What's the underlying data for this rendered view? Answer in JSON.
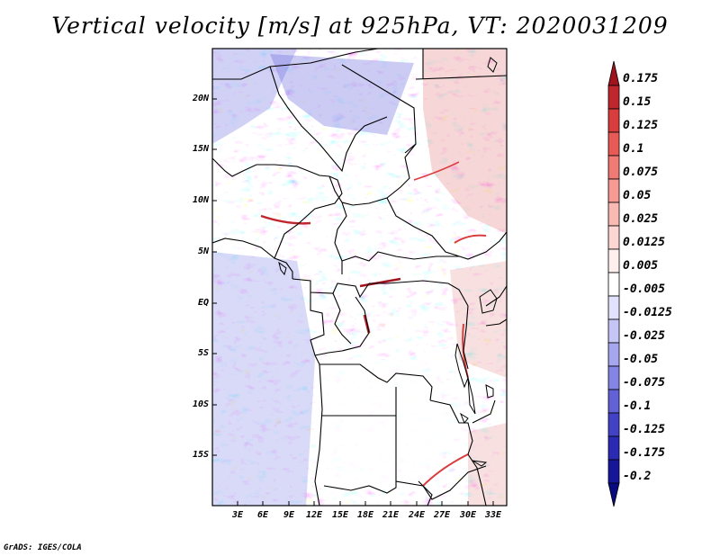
{
  "title": "Vertical velocity [m/s] at 925hPa, VT: 2020031209",
  "footer": "GrADS: IGES/COLA",
  "map": {
    "lon_range": [
      0,
      34
    ],
    "lat_range": [
      -20,
      25
    ],
    "lat_ticks": [
      "20N",
      "15N",
      "10N",
      "5N",
      "EQ",
      "5S",
      "10S",
      "15S"
    ],
    "lon_ticks": [
      "3E",
      "6E",
      "9E",
      "12E",
      "15E",
      "18E",
      "21E",
      "24E",
      "27E",
      "30E",
      "33E"
    ]
  },
  "colorbar": {
    "levels": [
      "0.175",
      "0.15",
      "0.125",
      "0.1",
      "0.075",
      "0.05",
      "0.025",
      "0.0125",
      "0.005",
      "-0.005",
      "-0.0125",
      "-0.025",
      "-0.05",
      "-0.075",
      "-0.1",
      "-0.125",
      "-0.175",
      "-0.2"
    ],
    "colors": [
      "#a0141e",
      "#c0262e",
      "#d83c3c",
      "#e85a56",
      "#f07a74",
      "#f69a94",
      "#fabab4",
      "#fcd6d2",
      "#fff0ee",
      "#ffffff",
      "#e2e2fc",
      "#c6c6f6",
      "#a6a6ee",
      "#8484e4",
      "#6262d6",
      "#4242c6",
      "#2a2ab4",
      "#16169a",
      "#0a0a80"
    ]
  }
}
